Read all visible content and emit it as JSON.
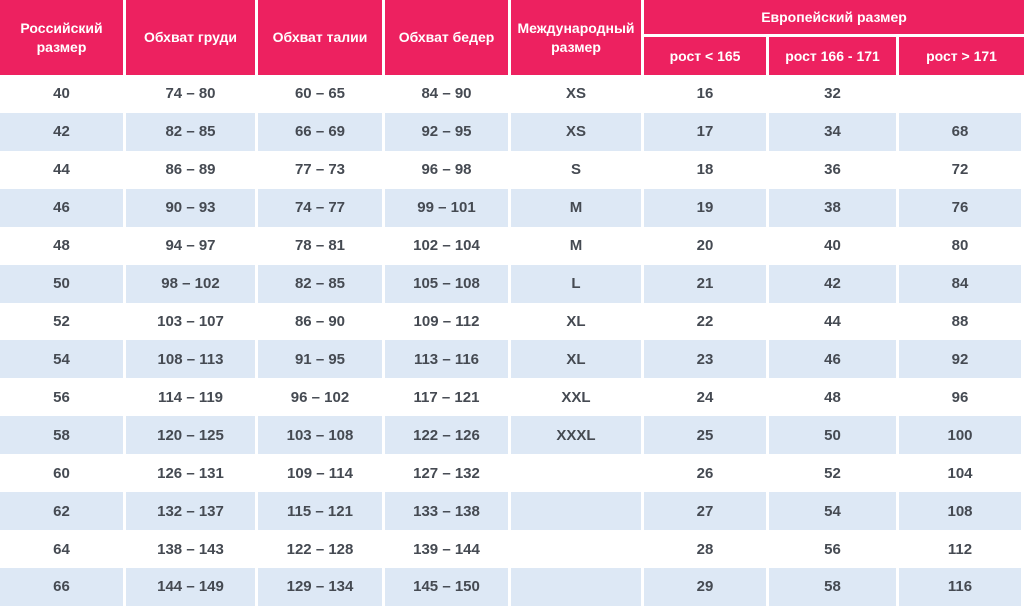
{
  "colors": {
    "header_bg": "#ED2160",
    "stripe_bg": "#DDE8F5",
    "row_bg": "#FFFFFF",
    "cell_text": "#454A52",
    "header_text": "#FFFFFF",
    "divider": "#FFFFFF"
  },
  "chart_data": {
    "type": "table",
    "title": "",
    "header": {
      "russian_size": "Российский размер",
      "chest": "Обхват груди",
      "waist": "Обхват талии",
      "hips": "Обхват бедер",
      "international_size": "Международный размер",
      "european_size": "Европейский размер",
      "height_lt_165": "рост < 165",
      "height_166_171": "рост 166 - 171",
      "height_gt_171": "рост > 171"
    },
    "rows": [
      [
        "40",
        "74 – 80",
        "60 – 65",
        "84 – 90",
        "XS",
        "16",
        "32",
        ""
      ],
      [
        "42",
        "82 – 85",
        "66 – 69",
        "92 – 95",
        "XS",
        "17",
        "34",
        "68"
      ],
      [
        "44",
        "86 – 89",
        "77 – 73",
        "96 – 98",
        "S",
        "18",
        "36",
        "72"
      ],
      [
        "46",
        "90 – 93",
        "74 – 77",
        "99 – 101",
        "M",
        "19",
        "38",
        "76"
      ],
      [
        "48",
        "94 – 97",
        "78 – 81",
        "102 – 104",
        "M",
        "20",
        "40",
        "80"
      ],
      [
        "50",
        "98 – 102",
        "82 – 85",
        "105 – 108",
        "L",
        "21",
        "42",
        "84"
      ],
      [
        "52",
        "103 – 107",
        "86 – 90",
        "109 – 112",
        "XL",
        "22",
        "44",
        "88"
      ],
      [
        "54",
        "108 – 113",
        "91 – 95",
        "113 – 116",
        "XL",
        "23",
        "46",
        "92"
      ],
      [
        "56",
        "114 – 119",
        "96 – 102",
        "117 – 121",
        "XXL",
        "24",
        "48",
        "96"
      ],
      [
        "58",
        "120 – 125",
        "103 – 108",
        "122 – 126",
        "XXXL",
        "25",
        "50",
        "100"
      ],
      [
        "60",
        "126 – 131",
        "109 – 114",
        "127 – 132",
        "",
        "26",
        "52",
        "104"
      ],
      [
        "62",
        "132 – 137",
        "115 – 121",
        "133 – 138",
        "",
        "27",
        "54",
        "108"
      ],
      [
        "64",
        "138 – 143",
        "122 – 128",
        "139 – 144",
        "",
        "28",
        "56",
        "112"
      ],
      [
        "66",
        "144 – 149",
        "129 – 134",
        "145 – 150",
        "",
        "29",
        "58",
        "116"
      ]
    ]
  }
}
